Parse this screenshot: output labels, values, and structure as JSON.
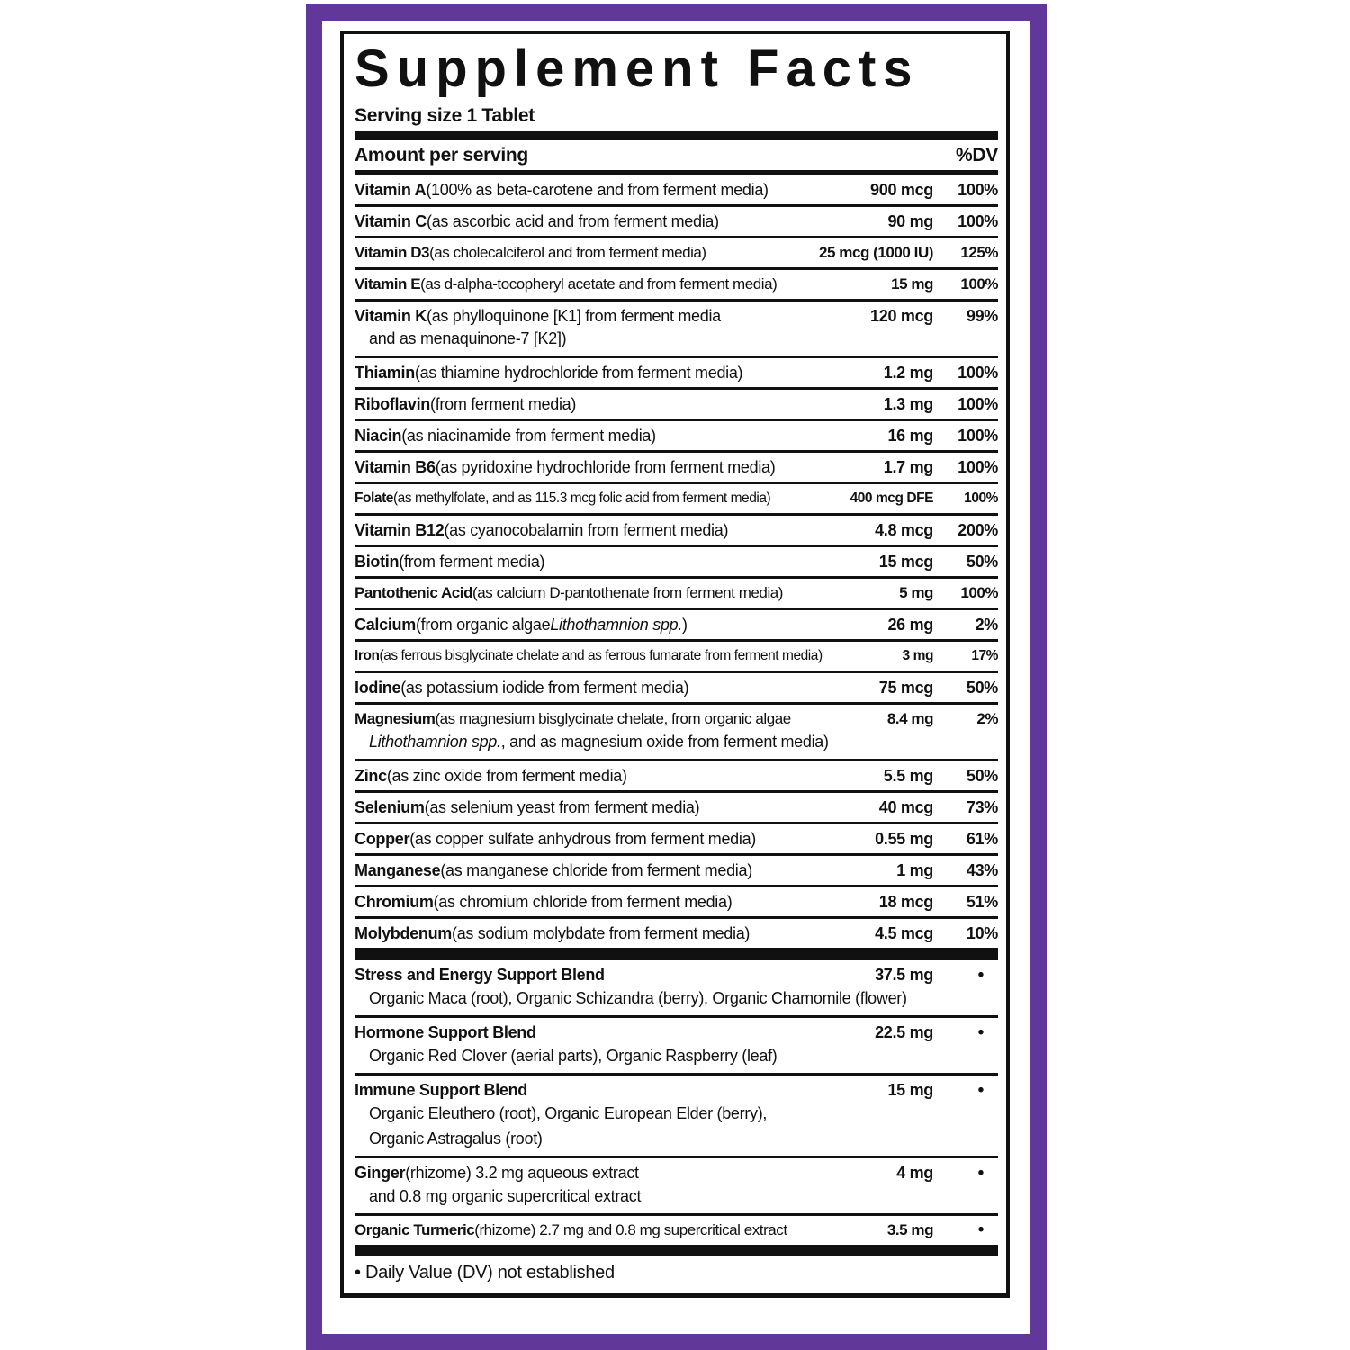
{
  "colors": {
    "frame_purple": "#61379a",
    "ink": "#111111"
  },
  "title": "Supplement Facts",
  "serving_size": "Serving size 1 Tablet",
  "columns": {
    "amount_header": "Amount per serving",
    "dv_header": "%DV"
  },
  "nutrients": [
    {
      "name": "Vitamin A",
      "desc": [
        {
          "text": " (100% as beta-carotene and from ferment media)"
        }
      ],
      "amount": "900 mcg",
      "dv": "100%"
    },
    {
      "name": "Vitamin C",
      "desc": [
        {
          "text": " (as ascorbic acid and from ferment media)"
        }
      ],
      "amount": "90 mg",
      "dv": "100%"
    },
    {
      "name": "Vitamin D3",
      "desc": [
        {
          "text": " (as cholecalciferol and from ferment media)"
        }
      ],
      "amount": "25 mcg (1000 IU)",
      "dv": "125%"
    },
    {
      "name": "Vitamin E",
      "desc": [
        {
          "text": " (as d-alpha-tocopheryl acetate and from ferment media)"
        }
      ],
      "amount": "15 mg",
      "dv": "100%"
    },
    {
      "name": "Vitamin K",
      "desc": [
        {
          "text": " (as phylloquinone [K1] from ferment media"
        }
      ],
      "amount": "120 mcg",
      "dv": "99%",
      "sublines": [
        [
          {
            "text": "and as menaquinone-7 [K2])"
          }
        ]
      ]
    },
    {
      "name": "Thiamin",
      "desc": [
        {
          "text": " (as thiamine hydrochloride from ferment media)"
        }
      ],
      "amount": "1.2 mg",
      "dv": "100%"
    },
    {
      "name": "Riboflavin",
      "desc": [
        {
          "text": " (from ferment media)"
        }
      ],
      "amount": "1.3 mg",
      "dv": "100%"
    },
    {
      "name": "Niacin",
      "desc": [
        {
          "text": " (as niacinamide from ferment media)"
        }
      ],
      "amount": "16 mg",
      "dv": "100%"
    },
    {
      "name": "Vitamin B6",
      "desc": [
        {
          "text": " (as pyridoxine hydrochloride from ferment media)"
        }
      ],
      "amount": "1.7 mg",
      "dv": "100%"
    },
    {
      "name": "Folate",
      "desc": [
        {
          "text": " (as methylfolate, and as 115.3 mcg folic acid from ferment media)"
        }
      ],
      "amount": "400 mcg DFE",
      "dv": "100%"
    },
    {
      "name": "Vitamin B12",
      "desc": [
        {
          "text": " (as cyanocobalamin from ferment media)"
        }
      ],
      "amount": "4.8 mcg",
      "dv": "200%"
    },
    {
      "name": "Biotin",
      "desc": [
        {
          "text": " (from ferment media)"
        }
      ],
      "amount": "15 mcg",
      "dv": "50%"
    },
    {
      "name": "Pantothenic Acid",
      "desc": [
        {
          "text": " (as calcium D-pantothenate from ferment media)"
        }
      ],
      "amount": "5 mg",
      "dv": "100%"
    },
    {
      "name": "Calcium",
      "desc": [
        {
          "text": " (from organic algae "
        },
        {
          "text": "Lithothamnion spp.",
          "italic": true
        },
        {
          "text": ")"
        }
      ],
      "amount": "26 mg",
      "dv": "2%"
    },
    {
      "name": "Iron",
      "desc": [
        {
          "text": " (as ferrous bisglycinate chelate and as ferrous fumarate from ferment media)"
        }
      ],
      "amount": "3 mg",
      "dv": "17%"
    },
    {
      "name": "Iodine",
      "desc": [
        {
          "text": " (as potassium iodide from ferment media)"
        }
      ],
      "amount": "75 mcg",
      "dv": "50%"
    },
    {
      "name": "Magnesium",
      "desc": [
        {
          "text": " (as magnesium bisglycinate chelate, from organic algae"
        }
      ],
      "amount": "8.4 mg",
      "dv": "2%",
      "sublines": [
        [
          {
            "text": "Lithothamnion spp.",
            "italic": true
          },
          {
            "text": ", and as magnesium oxide from ferment media)"
          }
        ]
      ]
    },
    {
      "name": "Zinc",
      "desc": [
        {
          "text": " (as zinc oxide from ferment media)"
        }
      ],
      "amount": "5.5 mg",
      "dv": "50%"
    },
    {
      "name": "Selenium",
      "desc": [
        {
          "text": " (as selenium yeast from ferment media)"
        }
      ],
      "amount": "40 mcg",
      "dv": "73%"
    },
    {
      "name": "Copper",
      "desc": [
        {
          "text": " (as copper sulfate anhydrous from ferment media)"
        }
      ],
      "amount": "0.55 mg",
      "dv": "61%"
    },
    {
      "name": "Manganese",
      "desc": [
        {
          "text": " (as manganese chloride from ferment media)"
        }
      ],
      "amount": "1 mg",
      "dv": "43%"
    },
    {
      "name": "Chromium",
      "desc": [
        {
          "text": " (as chromium chloride from ferment media)"
        }
      ],
      "amount": "18 mcg",
      "dv": "51%"
    },
    {
      "name": "Molybdenum",
      "desc": [
        {
          "text": " (as sodium molybdate from ferment media)"
        }
      ],
      "amount": "4.5 mcg",
      "dv": "10%"
    }
  ],
  "blends": [
    {
      "name": "Stress and Energy Support Blend",
      "desc": [],
      "amount": "37.5 mg",
      "dv": "•",
      "sublines": [
        [
          {
            "text": "Organic Maca (root), Organic Schizandra (berry), Organic Chamomile (flower)"
          }
        ]
      ]
    },
    {
      "name": "Hormone Support Blend",
      "desc": [],
      "amount": "22.5 mg",
      "dv": "•",
      "sublines": [
        [
          {
            "text": "Organic Red Clover (aerial parts), Organic Raspberry (leaf)"
          }
        ]
      ]
    },
    {
      "name": "Immune Support Blend",
      "desc": [],
      "amount": "15 mg",
      "dv": "•",
      "sublines": [
        [
          {
            "text": "Organic Eleuthero (root), Organic European Elder (berry),"
          }
        ],
        [
          {
            "text": "Organic Astragalus (root)"
          }
        ]
      ]
    },
    {
      "name": "Ginger",
      "desc": [
        {
          "text": " (rhizome) 3.2 mg aqueous extract"
        }
      ],
      "amount": "4 mg",
      "dv": "•",
      "sublines": [
        [
          {
            "text": "and 0.8 mg organic supercritical extract"
          }
        ]
      ]
    },
    {
      "name": "Organic Turmeric",
      "desc": [
        {
          "text": " (rhizome) 2.7 mg and 0.8 mg supercritical extract"
        }
      ],
      "amount": "3.5 mg",
      "dv": "•"
    }
  ],
  "footnote": "• Daily Value (DV) not established"
}
